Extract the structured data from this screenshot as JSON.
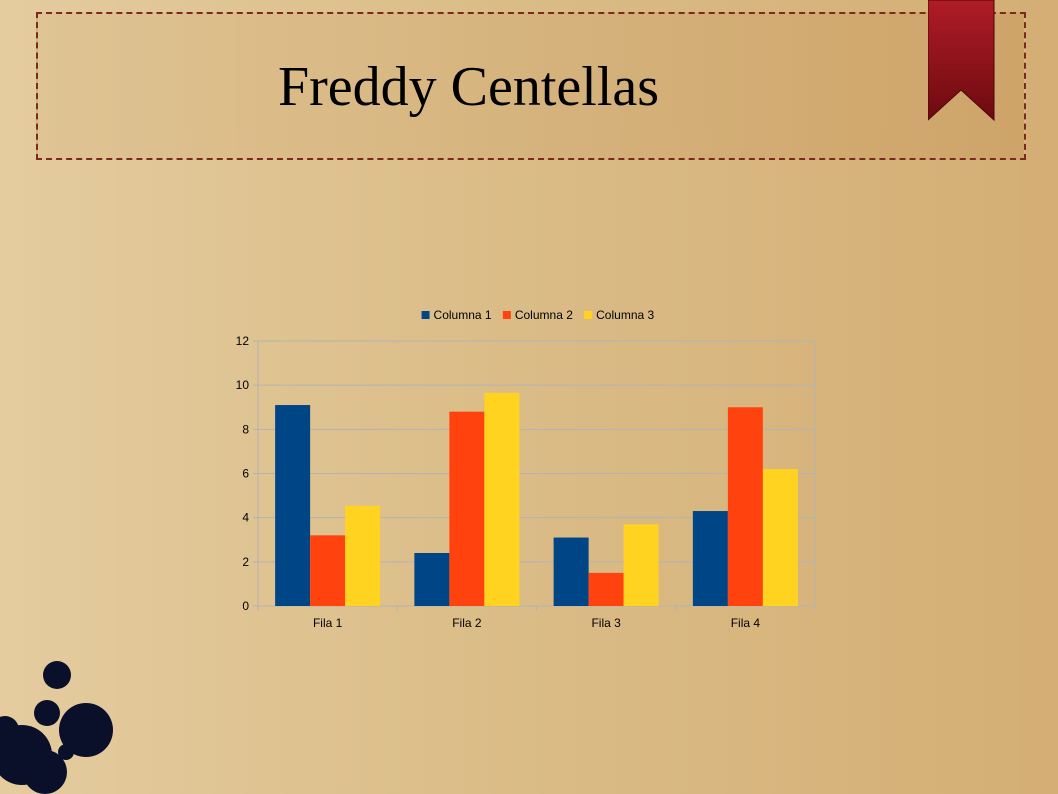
{
  "slide": {
    "title": "Freddy Centellas"
  },
  "colors": {
    "title_border": "#7a2a20",
    "ribbon": "#9e1620",
    "ink": "#0a0f2a"
  },
  "chart_data": {
    "type": "bar",
    "categories": [
      "Fila 1",
      "Fila 2",
      "Fila 3",
      "Fila 4"
    ],
    "series": [
      {
        "name": "Columna 1",
        "color": "#004586",
        "values": [
          9.1,
          2.4,
          3.1,
          4.3
        ]
      },
      {
        "name": "Columna 2",
        "color": "#ff420e",
        "values": [
          3.2,
          8.8,
          1.5,
          9
        ]
      },
      {
        "name": "Columna 3",
        "color": "#ffd320",
        "values": [
          4.54,
          9.65,
          3.7,
          6.2
        ]
      }
    ],
    "ylim": [
      0,
      12
    ],
    "yticks": [
      0,
      2,
      4,
      6,
      8,
      10,
      12
    ],
    "grid": true,
    "legend": "top"
  }
}
